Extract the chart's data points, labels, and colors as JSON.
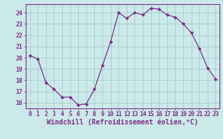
{
  "x": [
    0,
    1,
    2,
    3,
    4,
    5,
    6,
    7,
    8,
    9,
    10,
    11,
    12,
    13,
    14,
    15,
    16,
    17,
    18,
    19,
    20,
    21,
    22,
    23
  ],
  "y": [
    20.2,
    19.9,
    17.8,
    17.2,
    16.5,
    16.5,
    15.8,
    15.9,
    17.2,
    19.3,
    21.4,
    24.0,
    23.5,
    24.0,
    23.8,
    24.4,
    24.3,
    23.8,
    23.6,
    23.0,
    22.2,
    20.8,
    19.1,
    18.1
  ],
  "line_color": "#7b2d8b",
  "marker": "D",
  "marker_size": 2.2,
  "bg_color": "#cce9e9",
  "grid_color": "#a0cccc",
  "xlabel": "Windchill (Refroidissement éolien,°C)",
  "xlabel_color": "#7b2d8b",
  "tick_color": "#7b2d8b",
  "spine_color": "#7b2d8b",
  "ylim": [
    15.5,
    24.75
  ],
  "xlim": [
    -0.5,
    23.5
  ],
  "yticks": [
    16,
    17,
    18,
    19,
    20,
    21,
    22,
    23,
    24
  ],
  "xticks": [
    0,
    1,
    2,
    3,
    4,
    5,
    6,
    7,
    8,
    9,
    10,
    11,
    12,
    13,
    14,
    15,
    16,
    17,
    18,
    19,
    20,
    21,
    22,
    23
  ],
  "tick_fontsize": 6.0,
  "xlabel_fontsize": 7.0
}
